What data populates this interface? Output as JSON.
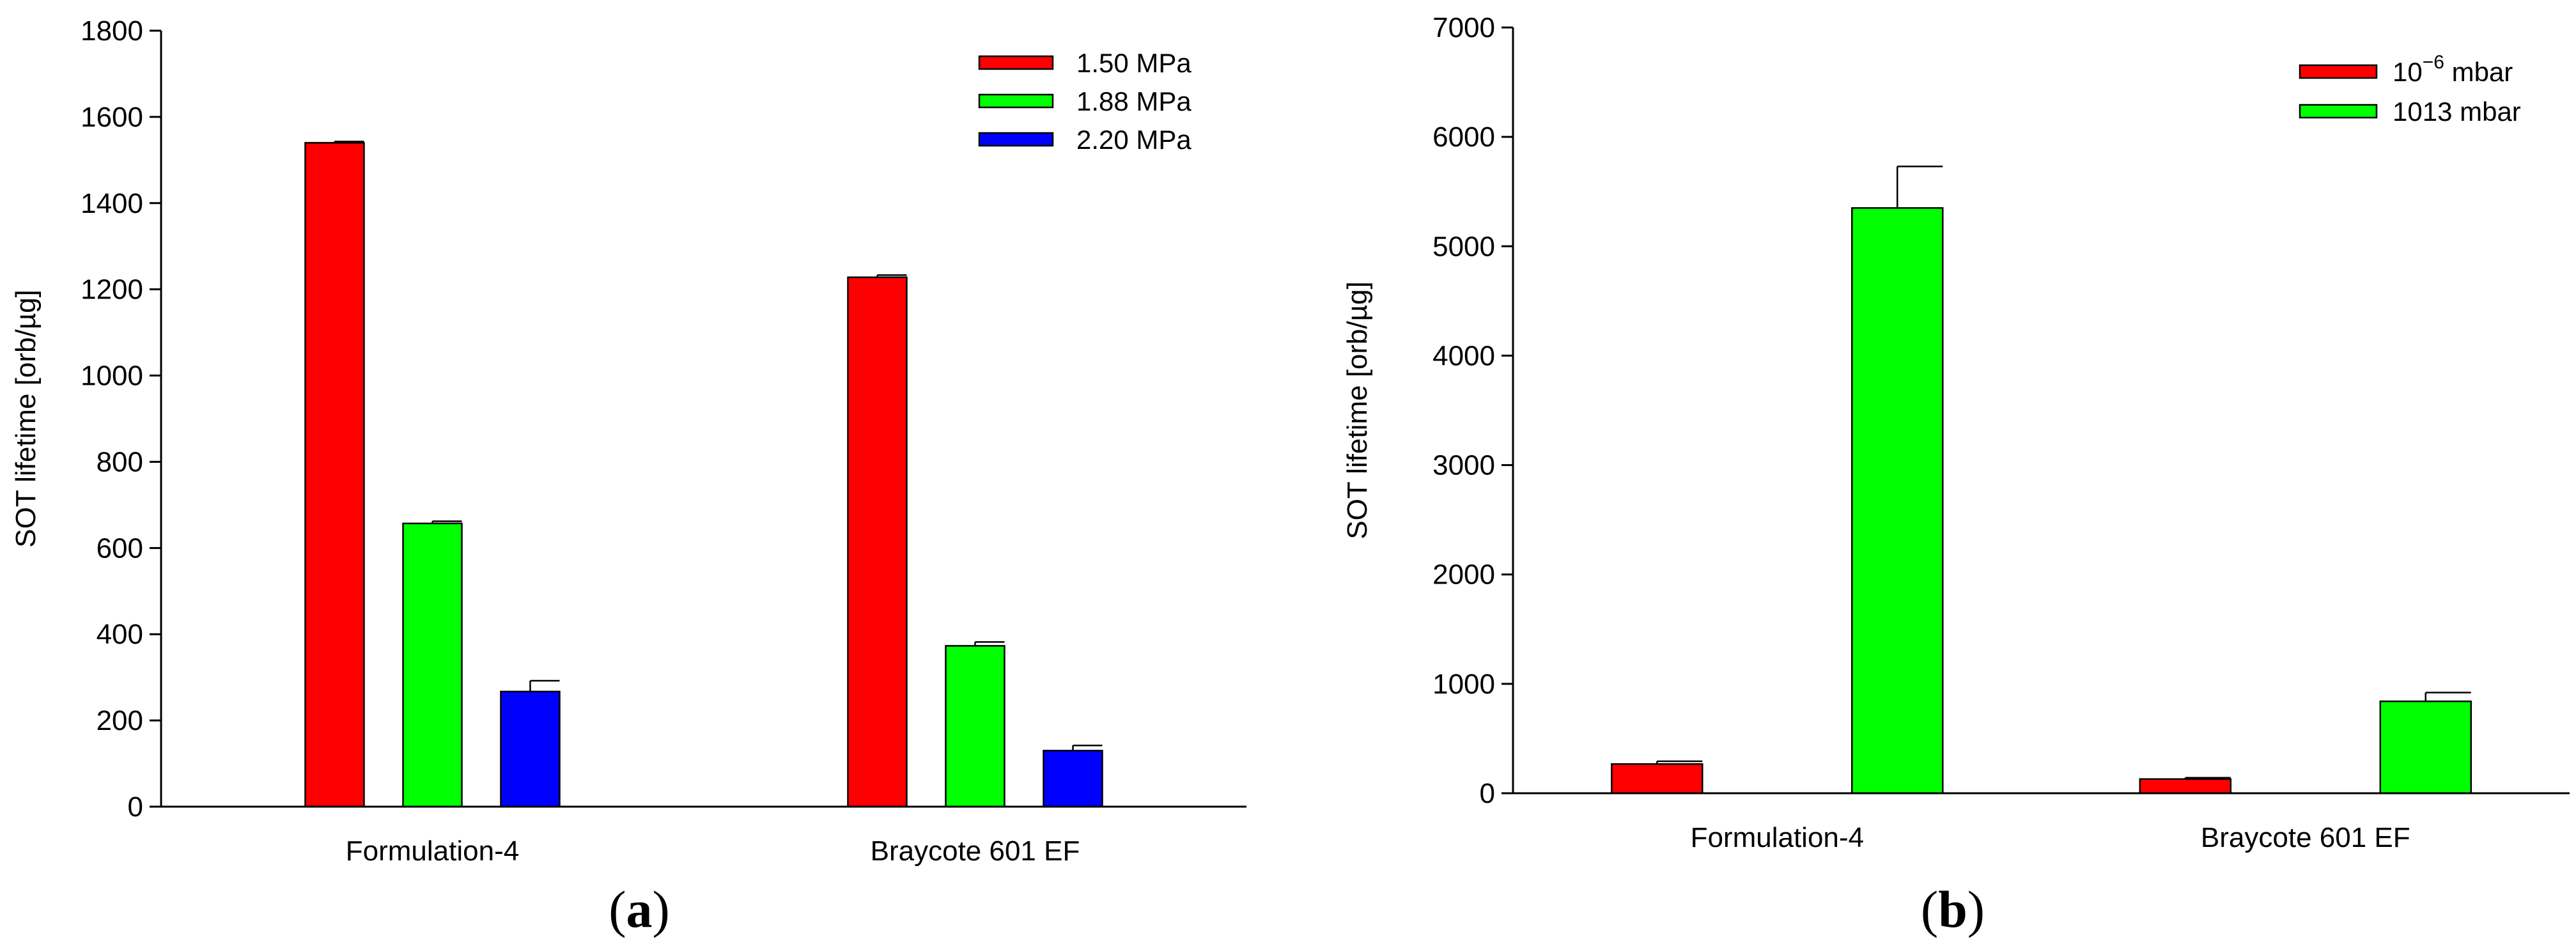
{
  "chart_data": [
    {
      "type": "bar",
      "panel": "a",
      "categories": [
        "Formulation-4",
        "Braycote 601 EF"
      ],
      "series": [
        {
          "name": "1.50 MPa",
          "values": [
            1540,
            1228
          ],
          "errors": [
            3,
            5
          ],
          "color": "#ff0000"
        },
        {
          "name": "1.88 MPa",
          "values": [
            657,
            373
          ],
          "errors": [
            5,
            9
          ],
          "color": "#00ff00"
        },
        {
          "name": "2.20 MPa",
          "values": [
            267,
            130
          ],
          "errors": [
            25,
            12
          ],
          "color": "#0000ff"
        }
      ],
      "ylabel": "SOT lifetime [orb/µg]",
      "xlabel": "",
      "ylim": [
        0,
        1800
      ],
      "yticks": [
        0,
        200,
        400,
        600,
        800,
        1000,
        1200,
        1400,
        1600,
        1800
      ],
      "legend_position": "top-right",
      "grid": false
    },
    {
      "type": "bar",
      "panel": "b",
      "categories": [
        "Formulation-4",
        "Braycote 601 EF"
      ],
      "series": [
        {
          "name": "10⁻⁶ mbar",
          "name_base": "10",
          "name_exp": "−6",
          "name_unit": " mbar",
          "values": [
            267,
            130
          ],
          "errors": [
            25,
            12
          ],
          "color": "#ff0000"
        },
        {
          "name": "1013 mbar",
          "name_base": "1013 mbar",
          "name_exp": "",
          "name_unit": "",
          "values": [
            5350,
            840
          ],
          "errors": [
            380,
            80
          ],
          "color": "#00ff00"
        }
      ],
      "ylabel": "SOT lifetime [orb/µg]",
      "xlabel": "",
      "ylim": [
        0,
        7000
      ],
      "yticks": [
        0,
        1000,
        2000,
        3000,
        4000,
        5000,
        6000,
        7000
      ],
      "legend_position": "top-right",
      "grid": false
    }
  ],
  "captions": {
    "a": {
      "open": "(",
      "letter": "a",
      "close": ")"
    },
    "b": {
      "open": "(",
      "letter": "b",
      "close": ")"
    }
  }
}
